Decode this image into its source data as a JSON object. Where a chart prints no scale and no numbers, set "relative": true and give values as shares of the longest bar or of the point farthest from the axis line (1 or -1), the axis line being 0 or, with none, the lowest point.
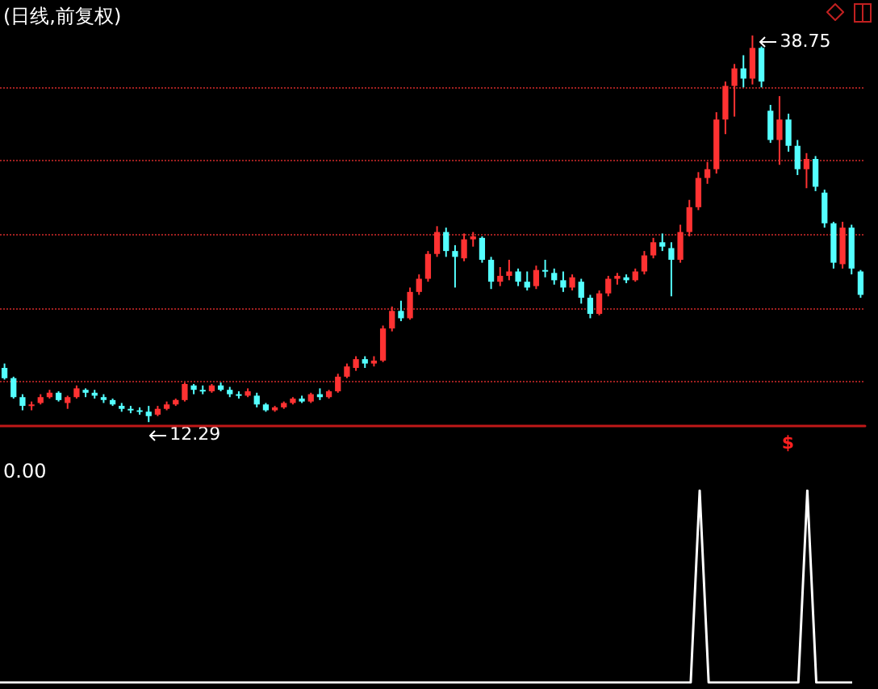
{
  "chart_data": [
    {
      "type": "candlestick",
      "title": "(日线,前复权)",
      "colors": [
        "#54ffff",
        "#54ffff",
        "#54ffff",
        "#ff3232",
        "#ff3232",
        "#ff3232",
        "#54ffff",
        "#ff3232",
        "#ff3232",
        "#54ffff",
        "#54ffff",
        "#54ffff",
        "#54ffff",
        "#54ffff",
        "#54ffff",
        "#54ffff",
        "#54ffff",
        "#ff3232",
        "#ff3232",
        "#ff3232",
        "#ff3232",
        "#54ffff",
        "#54ffff",
        "#ff3232",
        "#54ffff",
        "#54ffff",
        "#54ffff",
        "#ff3232",
        "#54ffff",
        "#54ffff",
        "#ff3232",
        "#ff3232",
        "#ff3232",
        "#54ffff",
        "#ff3232",
        "#54ffff",
        "#ff3232",
        "#ff3232",
        "#ff3232",
        "#ff3232",
        "#54ffff",
        "#ff3232",
        "#ff3232",
        "#ff3232",
        "#54ffff",
        "#ff3232",
        "#ff3232",
        "#ff3232",
        "#ff3232",
        "#54ffff",
        "#54ffff",
        "#ff3232",
        "#ff3232",
        "#54ffff",
        "#54ffff",
        "#ff3232",
        "#ff3232",
        "#54ffff",
        "#54ffff",
        "#ff3232",
        "#54ffff",
        "#54ffff",
        "#54ffff",
        "#ff3232",
        "#54ffff",
        "#54ffff",
        "#ff3232",
        "#ff3232",
        "#ff3232",
        "#54ffff",
        "#ff3232",
        "#ff3232",
        "#ff3232",
        "#54ffff",
        "#54ffff",
        "#ff3232",
        "#ff3232",
        "#ff3232",
        "#ff3232",
        "#ff3232",
        "#ff3232",
        "#ff3232",
        "#54ffff",
        "#ff3232",
        "#54ffff",
        "#54ffff",
        "#ff3232",
        "#54ffff",
        "#54ffff",
        "#ff3232",
        "#54ffff",
        "#54ffff",
        "#54ffff",
        "#ff3232",
        "#54ffff",
        "#54ffff"
      ],
      "grid": true,
      "categories": [
        null,
        null,
        null,
        null,
        null,
        null,
        null,
        null,
        null,
        null,
        null,
        null,
        null,
        null,
        null,
        null,
        null,
        null,
        null,
        null,
        null,
        null,
        null,
        null,
        null,
        null,
        null,
        null,
        null,
        null,
        null,
        null,
        null,
        null,
        null,
        null,
        null,
        null,
        null,
        null,
        null,
        null,
        null,
        null,
        null,
        null,
        null,
        null,
        null,
        null,
        null,
        null,
        null,
        null,
        null,
        null,
        null,
        null,
        null,
        null,
        null,
        null,
        null,
        null,
        null,
        null,
        null,
        null,
        null,
        null,
        null,
        null,
        null,
        null,
        null,
        null,
        null,
        null,
        null,
        null,
        null,
        null,
        null,
        null,
        null,
        null,
        null,
        null,
        null,
        null,
        null,
        null,
        null,
        null,
        null,
        null
      ],
      "ohlc": [
        [
          16.0,
          16.3,
          15.2,
          15.3
        ],
        [
          15.3,
          15.4,
          13.9,
          14.0
        ],
        [
          14.0,
          14.2,
          13.1,
          13.4
        ],
        [
          13.4,
          13.7,
          13.1,
          13.5
        ],
        [
          13.6,
          14.2,
          13.5,
          14.0
        ],
        [
          14.0,
          14.5,
          13.9,
          14.3
        ],
        [
          14.3,
          14.4,
          13.7,
          13.8
        ],
        [
          13.6,
          14.1,
          13.2,
          14.0
        ],
        [
          14.0,
          14.8,
          13.9,
          14.6
        ],
        [
          14.5,
          14.6,
          14.0,
          14.3
        ],
        [
          14.3,
          14.5,
          13.9,
          14.1
        ],
        [
          14.0,
          14.2,
          13.6,
          13.8
        ],
        [
          13.8,
          13.9,
          13.4,
          13.5
        ],
        [
          13.4,
          13.6,
          13.0,
          13.2
        ],
        [
          13.2,
          13.4,
          12.9,
          13.1
        ],
        [
          13.1,
          13.3,
          12.8,
          13.0
        ],
        [
          13.0,
          13.4,
          12.29,
          12.7
        ],
        [
          12.8,
          13.4,
          12.7,
          13.2
        ],
        [
          13.2,
          13.7,
          13.1,
          13.5
        ],
        [
          13.5,
          13.9,
          13.4,
          13.8
        ],
        [
          13.8,
          15.0,
          13.7,
          14.9
        ],
        [
          14.8,
          14.9,
          14.2,
          14.5
        ],
        [
          14.5,
          14.8,
          14.2,
          14.4
        ],
        [
          14.4,
          14.9,
          14.3,
          14.8
        ],
        [
          14.8,
          15.0,
          14.4,
          14.5
        ],
        [
          14.5,
          14.7,
          14.0,
          14.2
        ],
        [
          14.2,
          14.4,
          13.9,
          14.1
        ],
        [
          14.1,
          14.6,
          14.0,
          14.4
        ],
        [
          14.1,
          14.3,
          13.3,
          13.5
        ],
        [
          13.5,
          13.6,
          13.0,
          13.1
        ],
        [
          13.1,
          13.4,
          13.0,
          13.3
        ],
        [
          13.3,
          13.7,
          13.2,
          13.6
        ],
        [
          13.6,
          14.0,
          13.5,
          13.9
        ],
        [
          13.9,
          14.1,
          13.6,
          13.7
        ],
        [
          13.7,
          14.3,
          13.6,
          14.2
        ],
        [
          14.2,
          14.6,
          13.8,
          14.0
        ],
        [
          14.0,
          14.5,
          13.9,
          14.4
        ],
        [
          14.4,
          15.6,
          14.3,
          15.4
        ],
        [
          15.4,
          16.3,
          15.3,
          16.1
        ],
        [
          16.0,
          16.8,
          15.8,
          16.6
        ],
        [
          16.6,
          16.8,
          16.0,
          16.3
        ],
        [
          16.3,
          16.8,
          16.1,
          16.5
        ],
        [
          16.5,
          18.9,
          16.4,
          18.7
        ],
        [
          18.7,
          20.2,
          18.5,
          19.9
        ],
        [
          19.9,
          20.6,
          19.2,
          19.4
        ],
        [
          19.4,
          21.5,
          19.3,
          21.2
        ],
        [
          21.2,
          22.4,
          21.0,
          22.1
        ],
        [
          22.1,
          24.0,
          21.9,
          23.8
        ],
        [
          23.8,
          25.7,
          23.6,
          25.3
        ],
        [
          25.3,
          25.6,
          23.6,
          24.0
        ],
        [
          24.0,
          24.4,
          21.5,
          23.6
        ],
        [
          23.5,
          25.2,
          23.3,
          24.8
        ],
        [
          24.8,
          25.3,
          24.3,
          25.0
        ],
        [
          24.9,
          25.0,
          23.2,
          23.4
        ],
        [
          23.4,
          23.6,
          21.4,
          21.9
        ],
        [
          21.9,
          22.9,
          21.6,
          22.3
        ],
        [
          22.3,
          23.4,
          22.0,
          22.6
        ],
        [
          22.6,
          22.8,
          21.6,
          21.9
        ],
        [
          21.9,
          22.6,
          21.3,
          21.5
        ],
        [
          21.6,
          23.0,
          21.4,
          22.7
        ],
        [
          22.7,
          23.4,
          22.2,
          22.6
        ],
        [
          22.5,
          22.8,
          21.7,
          22.0
        ],
        [
          22.0,
          22.6,
          21.2,
          21.5
        ],
        [
          21.5,
          22.4,
          21.3,
          22.2
        ],
        [
          21.9,
          22.1,
          20.4,
          20.8
        ],
        [
          20.8,
          21.0,
          19.4,
          19.7
        ],
        [
          19.7,
          21.3,
          19.6,
          21.1
        ],
        [
          21.1,
          22.3,
          20.9,
          22.1
        ],
        [
          22.1,
          22.5,
          21.7,
          22.3
        ],
        [
          22.2,
          22.4,
          21.8,
          22.0
        ],
        [
          22.0,
          22.8,
          21.9,
          22.6
        ],
        [
          22.6,
          24.0,
          22.4,
          23.7
        ],
        [
          23.7,
          24.9,
          23.5,
          24.6
        ],
        [
          24.6,
          25.2,
          24.0,
          24.3
        ],
        [
          24.2,
          24.6,
          20.9,
          23.4
        ],
        [
          23.4,
          25.8,
          23.2,
          25.3
        ],
        [
          25.3,
          27.5,
          25.0,
          27.0
        ],
        [
          27.0,
          29.4,
          26.8,
          29.0
        ],
        [
          29.0,
          30.1,
          28.6,
          29.6
        ],
        [
          29.6,
          33.5,
          29.3,
          33.0
        ],
        [
          33.0,
          35.6,
          32.0,
          35.3
        ],
        [
          35.3,
          36.8,
          33.2,
          36.5
        ],
        [
          36.5,
          37.4,
          35.2,
          35.8
        ],
        [
          35.8,
          38.75,
          35.4,
          37.9
        ],
        [
          37.9,
          38.0,
          35.2,
          35.6
        ],
        [
          33.6,
          34.0,
          31.4,
          31.6
        ],
        [
          31.6,
          34.6,
          29.9,
          33.0
        ],
        [
          33.0,
          33.4,
          30.8,
          31.2
        ],
        [
          31.2,
          31.6,
          29.2,
          29.6
        ],
        [
          29.6,
          30.7,
          28.3,
          30.3
        ],
        [
          30.3,
          30.5,
          28.1,
          28.4
        ],
        [
          28.0,
          28.2,
          25.6,
          25.9
        ],
        [
          25.9,
          26.0,
          22.8,
          23.2
        ],
        [
          23.1,
          26.0,
          22.8,
          25.6
        ],
        [
          25.6,
          25.8,
          22.4,
          22.8
        ],
        [
          22.6,
          22.7,
          20.8,
          21.0
        ]
      ],
      "yticks": [
        {
          "value": 15.1,
          "label": null
        },
        {
          "value": 20.1,
          "label": null
        },
        {
          "value": 25.1,
          "label": null
        },
        {
          "value": 30.2,
          "label": null
        },
        {
          "value": 35.2,
          "label": null
        }
      ],
      "annotations": [
        "38.75",
        "12.29",
        "$"
      ]
    },
    {
      "type": "line",
      "relative": true,
      "annotations": [
        "0.00"
      ],
      "categories": [
        null,
        null,
        null,
        null,
        null,
        null,
        null,
        null,
        null,
        null,
        null,
        null,
        null,
        null,
        null,
        null,
        null,
        null,
        null,
        null,
        null,
        null,
        null,
        null,
        null,
        null,
        null,
        null,
        null,
        null,
        null,
        null,
        null,
        null,
        null,
        null,
        null,
        null,
        null,
        null,
        null,
        null,
        null,
        null,
        null,
        null,
        null,
        null,
        null,
        null,
        null,
        null,
        null,
        null,
        null,
        null,
        null,
        null,
        null,
        null,
        null,
        null,
        null,
        null,
        null,
        null,
        null,
        null,
        null,
        null,
        null,
        null,
        null,
        null,
        null,
        null,
        null,
        null,
        null,
        null,
        null,
        null,
        null,
        null,
        null,
        null,
        null,
        null,
        null,
        null,
        null,
        null,
        null,
        null,
        null,
        null
      ],
      "series": [
        {
          "color": "#ffffff",
          "values": [
            0,
            0,
            0,
            0,
            0,
            0,
            0,
            0,
            0,
            0,
            0,
            0,
            0,
            0,
            0,
            0,
            0,
            0,
            0,
            0,
            0,
            0,
            0,
            0,
            0,
            0,
            0,
            0,
            0,
            0,
            0,
            0,
            0,
            0,
            0,
            0,
            0,
            0,
            0,
            0,
            0,
            0,
            0,
            0,
            0,
            0,
            0,
            0,
            0,
            0,
            0,
            0,
            0,
            0,
            0,
            0,
            0,
            0,
            0,
            0,
            0,
            0,
            0,
            0,
            0,
            0,
            0,
            0,
            0,
            0,
            0,
            0,
            0,
            0,
            0,
            0,
            0,
            0,
            1,
            0,
            0,
            0,
            0,
            0,
            0,
            0,
            0,
            0,
            0,
            0,
            1,
            0,
            0,
            0,
            0,
            0
          ]
        }
      ]
    }
  ]
}
